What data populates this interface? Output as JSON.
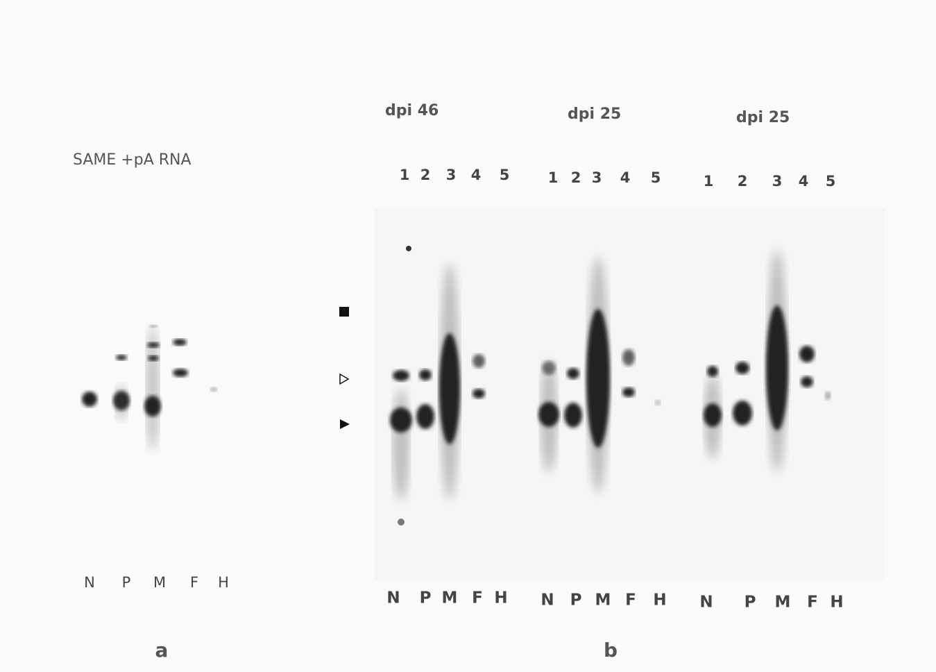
{
  "panel_a": {
    "title": "SAME +pA RNA",
    "lanes": [
      "N",
      "P",
      "M",
      "F",
      "H"
    ],
    "label": "a"
  },
  "panel_b": {
    "groups": [
      {
        "title": "dpi 46",
        "lanes": [
          "1",
          "2",
          "3",
          "4",
          "5"
        ],
        "tissues": [
          "N",
          "P",
          "M",
          "F",
          "H"
        ]
      },
      {
        "title": "dpi 25",
        "lanes": [
          "1",
          "2",
          "3",
          "4",
          "5"
        ],
        "tissues": [
          "N",
          "P",
          "M",
          "F",
          "H"
        ]
      },
      {
        "title": "dpi 25",
        "lanes": [
          "1",
          "2",
          "3",
          "4",
          "5"
        ],
        "tissues": [
          "N",
          "P",
          "M",
          "F",
          "H"
        ]
      }
    ],
    "label": "b"
  }
}
